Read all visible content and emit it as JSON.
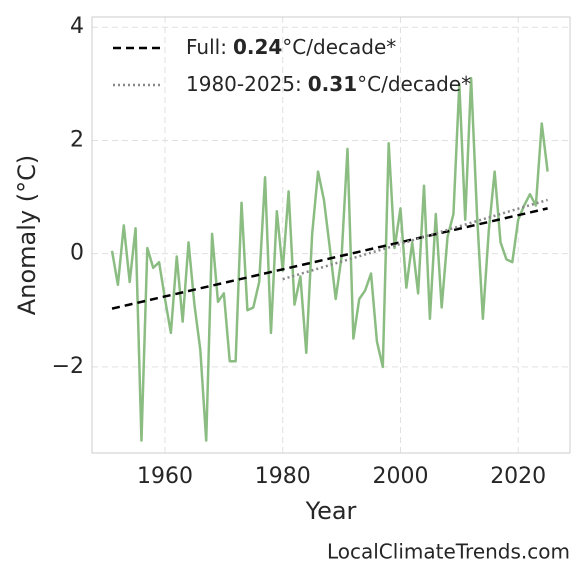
{
  "chart_data": {
    "type": "line",
    "x_label": "Year",
    "y_label": "Anomaly (°C)",
    "credit": "LocalClimateTrends.com",
    "xlim": [
      1947.6,
      2028.8
    ],
    "ylim": [
      -3.52,
      4.18
    ],
    "xticks": [
      1960,
      1980,
      2000,
      2020
    ],
    "yticks": [
      4,
      2,
      0,
      {
        "value": -2,
        "label": "−2"
      }
    ],
    "grid": true,
    "legend": "upper left",
    "x": [
      1951,
      1952,
      1953,
      1954,
      1955,
      1956,
      1957,
      1958,
      1959,
      1960,
      1961,
      1962,
      1963,
      1964,
      1965,
      1966,
      1967,
      1968,
      1969,
      1970,
      1971,
      1972,
      1973,
      1974,
      1975,
      1976,
      1977,
      1978,
      1979,
      1980,
      1981,
      1982,
      1983,
      1984,
      1985,
      1986,
      1987,
      1988,
      1989,
      1990,
      1991,
      1992,
      1993,
      1994,
      1995,
      1996,
      1997,
      1998,
      1999,
      2000,
      2001,
      2002,
      2003,
      2004,
      2005,
      2006,
      2007,
      2008,
      2009,
      2010,
      2011,
      2012,
      2013,
      2014,
      2015,
      2016,
      2017,
      2018,
      2019,
      2020,
      2021,
      2022,
      2023,
      2024,
      2025
    ],
    "series": [
      {
        "color": "#8bbd82",
        "values": [
          0.05,
          -0.55,
          0.5,
          -0.5,
          0.45,
          -3.3,
          0.1,
          -0.25,
          -0.15,
          -0.8,
          -1.4,
          -0.05,
          -1.2,
          0.2,
          -0.9,
          -1.7,
          -3.3,
          0.35,
          -0.85,
          -0.7,
          -1.9,
          -1.9,
          0.9,
          -1.0,
          -0.95,
          -0.5,
          1.35,
          -1.4,
          0.75,
          -0.3,
          1.1,
          -0.9,
          -0.4,
          -1.75,
          0.35,
          1.45,
          0.95,
          0.1,
          -0.8,
          -0.05,
          1.85,
          -1.5,
          -0.8,
          -0.65,
          -0.35,
          -1.55,
          -2.0,
          1.95,
          0.1,
          0.8,
          -0.6,
          0.2,
          -0.7,
          1.2,
          -1.15,
          0.7,
          -0.95,
          0.3,
          0.7,
          3.0,
          0.6,
          3.1,
          0.7,
          -1.15,
          0.4,
          1.45,
          0.2,
          -0.1,
          -0.15,
          0.6,
          0.85,
          1.05,
          0.85,
          2.3,
          1.45
        ]
      }
    ],
    "trends": [
      {
        "name": "Full:",
        "slope": 0.24,
        "slope_unit": "°C/decade*",
        "color": "#000000",
        "dash": "8 5",
        "x": [
          1951,
          2025
        ],
        "values": [
          -0.97,
          0.8
        ]
      },
      {
        "name": "1980-2025:",
        "slope": 0.31,
        "slope_unit": "°C/decade*",
        "color": "#888888",
        "dash": "2 3",
        "x": [
          1980,
          2025
        ],
        "values": [
          -0.45,
          0.95
        ]
      }
    ]
  }
}
